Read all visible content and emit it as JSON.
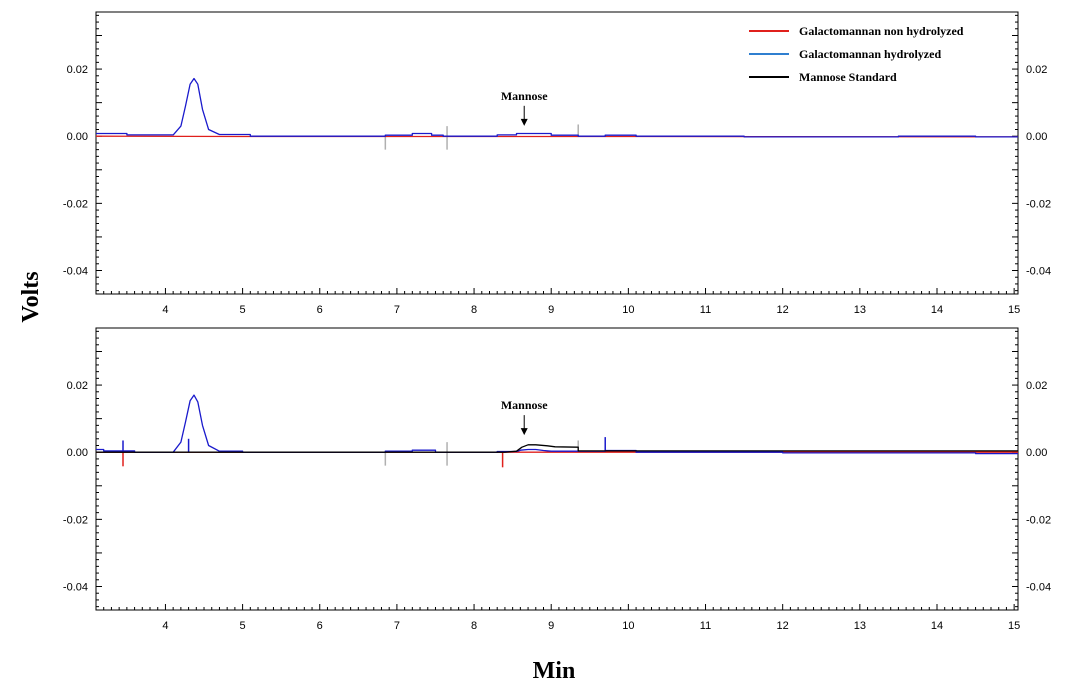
{
  "chart_data": [
    {
      "type": "line",
      "panel": "top",
      "xlabel": "Min",
      "ylabel": "Volts",
      "xlim": [
        3.1,
        15.05
      ],
      "ylim": [
        -0.047,
        0.037
      ],
      "x_ticks": [
        4,
        5,
        6,
        7,
        8,
        9,
        10,
        11,
        12,
        13,
        14,
        15
      ],
      "y_ticks": [
        0.02,
        0.0,
        -0.02,
        -0.04
      ],
      "y_tick_labels": [
        "0.02",
        "0.00",
        "-0.02",
        "-0.04"
      ],
      "x_tick_labels": [
        "4",
        "5",
        "6",
        "7",
        "8",
        "9",
        "10",
        "11",
        "12",
        "13",
        "14",
        "15"
      ],
      "grid": false,
      "legend_position": "top-right",
      "legend": [
        {
          "name": "Galactomannan non hydrolyzed",
          "color": "#e0201c"
        },
        {
          "name": "Galactomannan hydrolyzed",
          "color": "#2f7fd0"
        },
        {
          "name": "Mannose Standard",
          "color": "#000000"
        }
      ],
      "annotation": {
        "text": "Mannose",
        "x": 8.65,
        "y": 0.0025
      },
      "series": [
        {
          "name": "Galactomannan non hydrolyzed",
          "color": "#e0201c",
          "x": [
            3.1,
            5.0,
            10.0,
            15.05
          ],
          "y": [
            0.0,
            -0.0001,
            -0.0001,
            -0.0002
          ]
        },
        {
          "name": "Galactomannan hydrolyzed",
          "color": "#1a1acc",
          "x": [
            3.1,
            3.5,
            3.5,
            4.1,
            4.2,
            4.26,
            4.32,
            4.37,
            4.42,
            4.48,
            4.56,
            4.7,
            5.1,
            5.1,
            6.85,
            6.85,
            7.2,
            7.2,
            7.45,
            7.45,
            7.6,
            7.6,
            8.3,
            8.3,
            8.55,
            8.55,
            8.9,
            9.0,
            9.0,
            9.35,
            9.35,
            9.7,
            9.7,
            10.1,
            10.1,
            11.5,
            11.5,
            13.5,
            13.5,
            14.5,
            14.5,
            15.05
          ],
          "y": [
            0.0008,
            0.0008,
            0.0004,
            0.0004,
            0.003,
            0.009,
            0.0155,
            0.0172,
            0.0155,
            0.008,
            0.002,
            0.0005,
            0.0005,
            0.0,
            0.0,
            0.0003,
            0.0003,
            0.0008,
            0.0008,
            0.0003,
            0.0003,
            0.0,
            0.0,
            0.0004,
            0.0004,
            0.0008,
            0.0008,
            0.0008,
            0.0003,
            0.0003,
            0.0,
            0.0,
            0.0003,
            0.0003,
            0.0,
            0.0,
            -0.0002,
            -0.0002,
            0.0,
            0.0,
            -0.0002,
            -0.0002
          ]
        }
      ],
      "markers": [
        {
          "x": 6.85,
          "y0": -0.004,
          "y1": 0.0,
          "color": "#b0b0b0"
        },
        {
          "x": 7.65,
          "y0": -0.004,
          "y1": 0.003,
          "color": "#b0b0b0"
        },
        {
          "x": 9.35,
          "y0": 0.0,
          "y1": 0.0035,
          "color": "#b0b0b0"
        }
      ]
    },
    {
      "type": "line",
      "panel": "bottom",
      "xlabel": "Min",
      "ylabel": "Volts",
      "xlim": [
        3.1,
        15.05
      ],
      "ylim": [
        -0.047,
        0.037
      ],
      "x_ticks": [
        4,
        5,
        6,
        7,
        8,
        9,
        10,
        11,
        12,
        13,
        14,
        15
      ],
      "y_ticks": [
        0.02,
        0.0,
        -0.02,
        -0.04
      ],
      "y_tick_labels": [
        "0.02",
        "0.00",
        "-0.02",
        "-0.04"
      ],
      "x_tick_labels": [
        "4",
        "5",
        "6",
        "7",
        "8",
        "9",
        "10",
        "11",
        "12",
        "13",
        "14",
        "15"
      ],
      "grid": false,
      "annotation": {
        "text": "Mannose",
        "x": 8.65,
        "y": 0.0045
      },
      "series": [
        {
          "name": "Galactomannan non hydrolyzed",
          "color": "#e0201c",
          "x": [
            3.1,
            15.05
          ],
          "y": [
            0.0,
            0.0
          ]
        },
        {
          "name": "Galactomannan hydrolyzed",
          "color": "#1a1acc",
          "x": [
            3.1,
            3.2,
            3.2,
            3.6,
            3.6,
            4.1,
            4.2,
            4.26,
            4.32,
            4.37,
            4.42,
            4.48,
            4.56,
            4.7,
            5.0,
            5.0,
            6.85,
            6.85,
            7.2,
            7.2,
            7.5,
            7.5,
            8.3,
            8.3,
            8.55,
            8.6,
            8.7,
            8.8,
            8.9,
            9.0,
            9.7,
            9.7,
            10.1,
            10.1,
            12.0,
            12.0,
            14.5,
            14.5,
            15.05
          ],
          "y": [
            0.0008,
            0.0008,
            0.0004,
            0.0004,
            0.0,
            0.0,
            0.003,
            0.009,
            0.0153,
            0.017,
            0.015,
            0.008,
            0.002,
            0.0003,
            0.0003,
            0.0,
            0.0,
            0.0003,
            0.0003,
            0.0006,
            0.0006,
            0.0,
            0.0,
            0.0002,
            0.0002,
            0.0006,
            0.0008,
            0.0008,
            0.0005,
            0.0003,
            0.0003,
            0.0005,
            0.0005,
            0.0,
            0.0,
            -0.0002,
            -0.0002,
            -0.0004,
            -0.0004
          ]
        },
        {
          "name": "Mannose Standard",
          "color": "#000000",
          "x": [
            3.1,
            5.0,
            8.3,
            8.4,
            8.55,
            8.62,
            8.7,
            8.8,
            8.95,
            9.05,
            9.35,
            9.35,
            15.05
          ],
          "y": [
            0.0,
            0.0,
            0.0,
            0.0,
            0.0003,
            0.0015,
            0.0022,
            0.0022,
            0.0019,
            0.0016,
            0.0015,
            0.0004,
            0.0004
          ]
        }
      ],
      "markers": [
        {
          "x": 3.45,
          "y0": -0.0042,
          "y1": 0.0,
          "color": "#e0201c"
        },
        {
          "x": 3.45,
          "y0": 0.0,
          "y1": 0.0035,
          "color": "#1a1acc"
        },
        {
          "x": 4.3,
          "y0": 0.0,
          "y1": 0.004,
          "color": "#1a1acc"
        },
        {
          "x": 6.85,
          "y0": -0.004,
          "y1": 0.0,
          "color": "#b0b0b0"
        },
        {
          "x": 7.65,
          "y0": -0.004,
          "y1": 0.003,
          "color": "#b0b0b0"
        },
        {
          "x": 8.37,
          "y0": -0.0045,
          "y1": 0.0,
          "color": "#e0201c"
        },
        {
          "x": 9.35,
          "y0": 0.0,
          "y1": 0.0035,
          "color": "#b0b0b0"
        },
        {
          "x": 9.7,
          "y0": 0.0,
          "y1": 0.0045,
          "color": "#1a1acc"
        }
      ]
    }
  ]
}
